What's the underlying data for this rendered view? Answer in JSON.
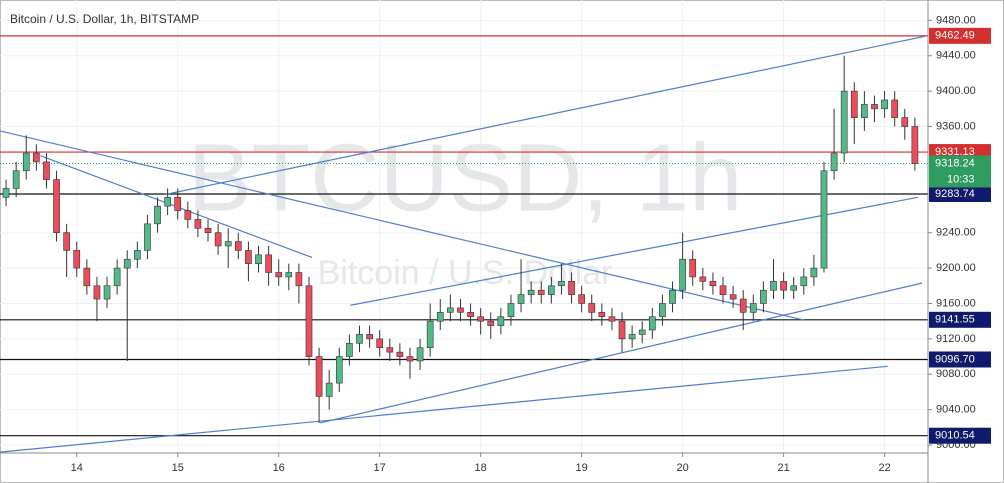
{
  "chart_data": {
    "type": "candlestick",
    "title": "Bitcoin / U.S. Dollar, 1h, BITSTAMP",
    "watermark": "BTCUSD, 1h",
    "watermark_subtitle": "Bitcoin / U.S. Dollar",
    "up_color": "#53b987",
    "down_color": "#eb4d5c",
    "xlim": [
      13.24,
      22.43
    ],
    "xticks": [
      14,
      15,
      16,
      17,
      18,
      19,
      20,
      21,
      22
    ],
    "ylim": [
      8991,
      9503
    ],
    "yticks": [
      {
        "value": 9480,
        "label": "9480.00"
      },
      {
        "value": 9440,
        "label": "9440.00"
      },
      {
        "value": 9400,
        "label": "9400.00"
      },
      {
        "value": 9360,
        "label": "9360.00"
      },
      {
        "value": 9240,
        "label": "9240.00"
      },
      {
        "value": 9200,
        "label": "9200.00"
      },
      {
        "value": 9160,
        "label": "9160.00"
      },
      {
        "value": 9120,
        "label": "9120.00"
      },
      {
        "value": 9080,
        "label": "9080.00"
      },
      {
        "value": 9040,
        "label": "9040.00"
      },
      {
        "value": 9000,
        "label": "9000.00"
      }
    ],
    "grid": true,
    "x": [
      13.3,
      13.4,
      13.5,
      13.6,
      13.7,
      13.8,
      13.9,
      14.0,
      14.1,
      14.2,
      14.3,
      14.4,
      14.5,
      14.6,
      14.7,
      14.8,
      14.9,
      15.0,
      15.1,
      15.2,
      15.3,
      15.4,
      15.5,
      15.6,
      15.7,
      15.8,
      15.9,
      16.0,
      16.1,
      16.2,
      16.3,
      16.4,
      16.5,
      16.6,
      16.7,
      16.8,
      16.9,
      17.0,
      17.1,
      17.2,
      17.3,
      17.4,
      17.5,
      17.6,
      17.7,
      17.8,
      17.9,
      18.0,
      18.1,
      18.2,
      18.3,
      18.4,
      18.5,
      18.6,
      18.7,
      18.8,
      18.9,
      19.0,
      19.1,
      19.2,
      19.3,
      19.4,
      19.5,
      19.6,
      19.7,
      19.8,
      19.9,
      20.0,
      20.1,
      20.2,
      20.3,
      20.4,
      20.5,
      20.6,
      20.7,
      20.8,
      20.9,
      21.0,
      21.1,
      21.2,
      21.3,
      21.4,
      21.5,
      21.6,
      21.7,
      21.8,
      21.9,
      22.0,
      22.1,
      22.2,
      22.3
    ],
    "open": [
      9280,
      9290,
      9310,
      9330,
      9320,
      9300,
      9240,
      9220,
      9200,
      9180,
      9165,
      9180,
      9200,
      9210,
      9220,
      9250,
      9270,
      9280,
      9265,
      9255,
      9245,
      9240,
      9225,
      9230,
      9220,
      9205,
      9215,
      9195,
      9190,
      9195,
      9180,
      9100,
      9055,
      9070,
      9100,
      9115,
      9125,
      9120,
      9110,
      9105,
      9100,
      9095,
      9110,
      9140,
      9150,
      9155,
      9150,
      9145,
      9140,
      9135,
      9145,
      9160,
      9170,
      9175,
      9170,
      9180,
      9185,
      9170,
      9160,
      9150,
      9145,
      9140,
      9120,
      9125,
      9130,
      9145,
      9160,
      9175,
      9210,
      9190,
      9185,
      9180,
      9170,
      9165,
      9150,
      9160,
      9175,
      9185,
      9175,
      9180,
      9190,
      9200,
      9310,
      9330,
      9400,
      9370,
      9385,
      9380,
      9390,
      9370,
      9360
    ],
    "high": [
      9300,
      9320,
      9350,
      9340,
      9330,
      9310,
      9250,
      9230,
      9210,
      9190,
      9190,
      9210,
      9220,
      9230,
      9260,
      9280,
      9290,
      9290,
      9275,
      9265,
      9255,
      9250,
      9245,
      9240,
      9230,
      9225,
      9225,
      9210,
      9205,
      9205,
      9190,
      9110,
      9085,
      9110,
      9125,
      9135,
      9135,
      9130,
      9120,
      9115,
      9110,
      9120,
      9160,
      9165,
      9170,
      9165,
      9160,
      9155,
      9150,
      9155,
      9170,
      9210,
      9185,
      9185,
      9190,
      9205,
      9195,
      9180,
      9170,
      9160,
      9155,
      9150,
      9135,
      9140,
      9155,
      9170,
      9185,
      9240,
      9220,
      9200,
      9195,
      9190,
      9180,
      9175,
      9170,
      9185,
      9210,
      9195,
      9190,
      9200,
      9215,
      9320,
      9380,
      9440,
      9410,
      9400,
      9395,
      9400,
      9400,
      9380,
      9370
    ],
    "low": [
      9270,
      9280,
      9300,
      9310,
      9290,
      9230,
      9190,
      9190,
      9170,
      9140,
      9155,
      9170,
      9095,
      9200,
      9210,
      9240,
      9260,
      9255,
      9245,
      9235,
      9230,
      9215,
      9200,
      9210,
      9185,
      9195,
      9180,
      9180,
      9175,
      9160,
      9090,
      9025,
      9040,
      9060,
      9090,
      9105,
      9110,
      9100,
      9095,
      9090,
      9075,
      9085,
      9100,
      9130,
      9140,
      9140,
      9135,
      9125,
      9120,
      9125,
      9135,
      9150,
      9160,
      9160,
      9160,
      9170,
      9160,
      9150,
      9140,
      9135,
      9130,
      9105,
      9110,
      9115,
      9120,
      9135,
      9150,
      9165,
      9180,
      9175,
      9170,
      9160,
      9155,
      9130,
      9140,
      9150,
      9165,
      9165,
      9165,
      9170,
      9180,
      9195,
      9300,
      9320,
      9340,
      9355,
      9365,
      9370,
      9360,
      9345,
      9310
    ],
    "close": [
      9290,
      9310,
      9330,
      9320,
      9300,
      9240,
      9220,
      9200,
      9180,
      9165,
      9180,
      9200,
      9210,
      9220,
      9250,
      9270,
      9280,
      9265,
      9255,
      9245,
      9240,
      9225,
      9230,
      9220,
      9205,
      9215,
      9195,
      9190,
      9195,
      9180,
      9100,
      9055,
      9070,
      9100,
      9115,
      9125,
      9120,
      9110,
      9105,
      9100,
      9095,
      9110,
      9140,
      9150,
      9155,
      9150,
      9145,
      9140,
      9135,
      9145,
      9160,
      9170,
      9175,
      9170,
      9180,
      9185,
      9170,
      9160,
      9150,
      9145,
      9140,
      9120,
      9125,
      9130,
      9145,
      9160,
      9175,
      9210,
      9190,
      9185,
      9180,
      9170,
      9165,
      9150,
      9160,
      9175,
      9185,
      9175,
      9180,
      9190,
      9200,
      9310,
      9330,
      9400,
      9370,
      9385,
      9380,
      9390,
      9370,
      9360,
      9318.24
    ],
    "countdown": "10:33",
    "last_color": "#2d9c5e",
    "levels": [
      {
        "price": 9462.49,
        "color": "#d42f2f",
        "label_color": "#d42f2f"
      },
      {
        "price": 9331.13,
        "color": "#d42f2f",
        "label_color": "#d42f2f"
      },
      {
        "price": 9283.74,
        "color": "#111111",
        "label_color": "#101a6c"
      },
      {
        "price": 9141.55,
        "color": "#111111",
        "label_color": "#101a6c"
      },
      {
        "price": 9096.7,
        "label": "9096.70",
        "color": "#111111",
        "label_color": "#101a6c"
      },
      {
        "price": 9010.54,
        "color": "#111111",
        "label_color": "#101a6c"
      }
    ],
    "trendline_color": "#4a7fd0",
    "trendlines": [
      {
        "x": [
          14.87,
          22.4
        ],
        "y": [
          9283,
          9462
        ]
      },
      {
        "x": [
          13.24,
          21.21
        ],
        "y": [
          9355,
          9141
        ]
      },
      {
        "x": [
          13.64,
          16.33
        ],
        "y": [
          9327,
          9212
        ]
      },
      {
        "x": [
          16.71,
          22.33
        ],
        "y": [
          9158,
          9280
        ]
      },
      {
        "x": [
          16.41,
          22.37
        ],
        "y": [
          9025,
          9183
        ]
      },
      {
        "x": [
          13.24,
          22.03
        ],
        "y": [
          8992,
          9089
        ]
      }
    ]
  }
}
